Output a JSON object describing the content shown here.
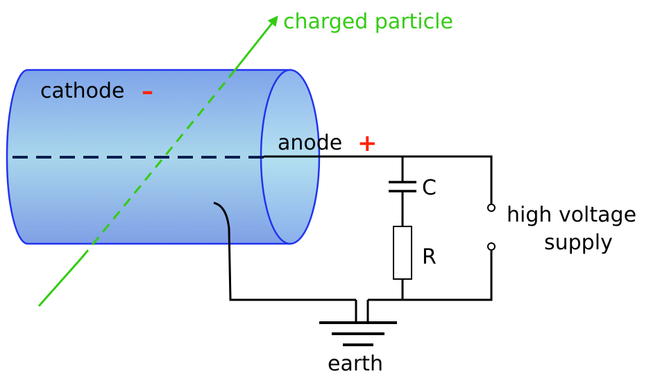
{
  "labels": {
    "charged_particle": "charged particle",
    "cathode": "cathode",
    "cathode_sign": "–",
    "anode": "anode",
    "anode_sign": "+",
    "capacitor": "C",
    "resistor": "R",
    "supply_line1": "high voltage",
    "supply_line2": "supply",
    "earth": "earth"
  },
  "colors": {
    "particle": "#33cc11",
    "tube_outline": "#2233ee",
    "tube_fill_top": "#7fa4ea",
    "tube_fill_mid": "#a9d6ec",
    "tube_fill_bottom": "#7fa0e6",
    "anode_wire": "#0b1f4f",
    "sign": "#ff2200"
  }
}
